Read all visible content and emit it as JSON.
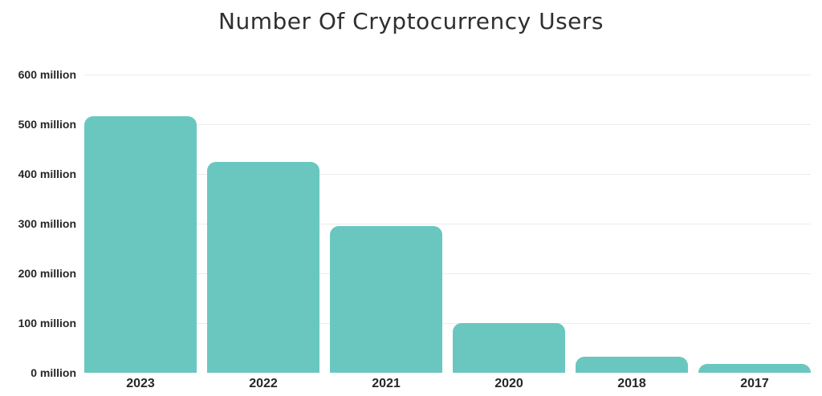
{
  "title": "Number Of Cryptocurrency Users",
  "colors": {
    "background": "#ffffff",
    "bar": "#6ac7c0",
    "gridline": "#ececec",
    "title_text": "#2f2f2f",
    "label_text": "#262626"
  },
  "chart_data": {
    "type": "bar",
    "title": "Number Of Cryptocurrency Users",
    "categories": [
      "2023",
      "2022",
      "2021",
      "2020",
      "2018",
      "2017"
    ],
    "values": [
      516,
      425,
      295,
      100,
      33,
      18
    ],
    "unit": "million users",
    "xlabel": "",
    "ylabel": "",
    "ylim": [
      0,
      600
    ],
    "y_ticks": [
      {
        "value": 600,
        "label": "600 million"
      },
      {
        "value": 500,
        "label": "500 million"
      },
      {
        "value": 400,
        "label": "400 million"
      },
      {
        "value": 300,
        "label": "300 million"
      },
      {
        "value": 200,
        "label": "200 million"
      },
      {
        "value": 100,
        "label": "100 million"
      },
      {
        "value": 0,
        "label": "0 million"
      }
    ],
    "grid": "horizontal-only",
    "legend": "none",
    "bar_color": "#6ac7c0",
    "bar_corner_radius_px": 11
  }
}
